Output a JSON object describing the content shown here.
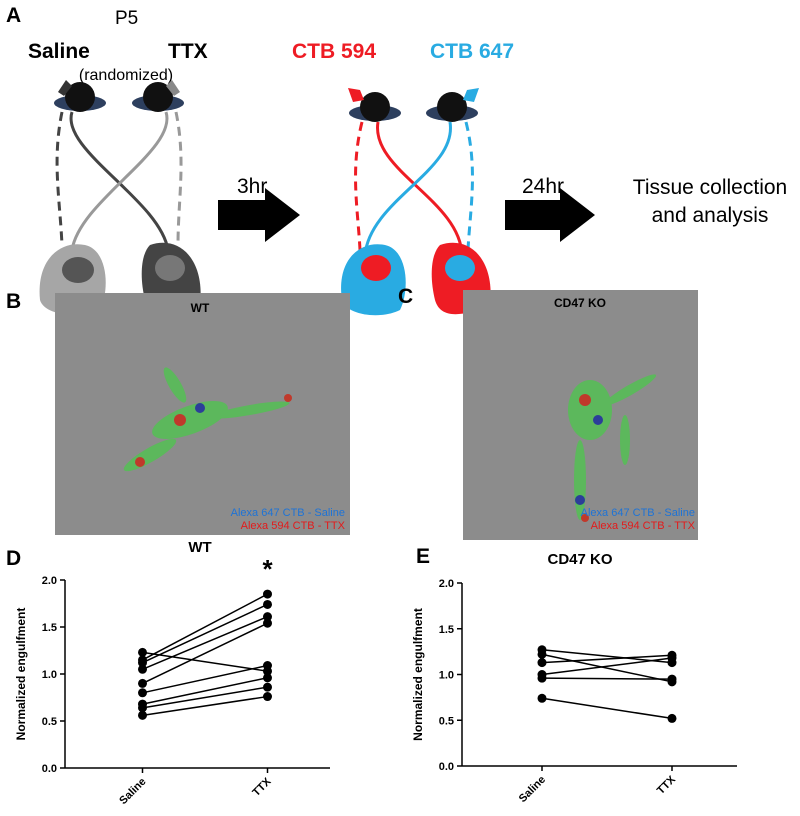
{
  "panel_a": {
    "label": "A",
    "age": "P5",
    "left_eye": "Saline",
    "note": "(randomized)",
    "right_eye": "TTX",
    "tracer_1": "CTB 594",
    "tracer_2": "CTB 647",
    "step_1": "3hr",
    "step_2": "24hr",
    "outcome": [
      "Tissue collection",
      "and analysis"
    ]
  },
  "panel_b": {
    "label": "B",
    "title": "WT",
    "legend": [
      "Alexa 647 CTB - Saline",
      "Alexa 594 CTB - TTX"
    ]
  },
  "panel_c": {
    "label": "C",
    "title": "CD47 KO",
    "legend": [
      "Alexa 647 CTB - Saline",
      "Alexa 594 CTB - TTX"
    ]
  },
  "chart_data": [
    {
      "type": "line",
      "panel": "D",
      "title": "WT",
      "ylabel": "Normalized engulfment",
      "annotation": "*",
      "categories": [
        "Saline",
        "TTX"
      ],
      "color": "#000000",
      "ylim": [
        0,
        2
      ],
      "yticks": [
        {
          "value": 0,
          "label": "0.0"
        },
        0.5,
        {
          "value": 1,
          "label": "1.0"
        },
        1.5,
        {
          "value": 2,
          "label": "2.0"
        }
      ],
      "series": [
        {
          "values": [
            1.23,
            1.03
          ]
        },
        {
          "values": [
            1.15,
            1.85
          ]
        },
        {
          "values": [
            1.12,
            1.74
          ]
        },
        {
          "values": [
            1.05,
            1.61
          ]
        },
        {
          "values": [
            0.9,
            1.54
          ]
        },
        {
          "values": [
            0.8,
            1.09
          ]
        },
        {
          "values": [
            0.68,
            0.96
          ]
        },
        {
          "values": [
            0.64,
            0.86
          ]
        },
        {
          "values": [
            0.56,
            0.76
          ]
        }
      ]
    },
    {
      "type": "line",
      "panel": "E",
      "title": "CD47 KO",
      "ylabel": "Normalized engulfment",
      "categories": [
        "Saline",
        "TTX"
      ],
      "color": "#000000",
      "ylim": [
        0,
        2
      ],
      "yticks": [
        {
          "value": 0,
          "label": "0.0"
        },
        0.5,
        {
          "value": 1,
          "label": "1.0"
        },
        1.5,
        {
          "value": 2,
          "label": "2.0"
        }
      ],
      "series": [
        {
          "values": [
            1.27,
            1.13
          ]
        },
        {
          "values": [
            1.22,
            0.92
          ]
        },
        {
          "values": [
            1.13,
            1.21
          ]
        },
        {
          "values": [
            1.0,
            1.18
          ]
        },
        {
          "values": [
            0.96,
            0.95
          ]
        },
        {
          "values": [
            0.74,
            0.52
          ]
        }
      ]
    }
  ]
}
